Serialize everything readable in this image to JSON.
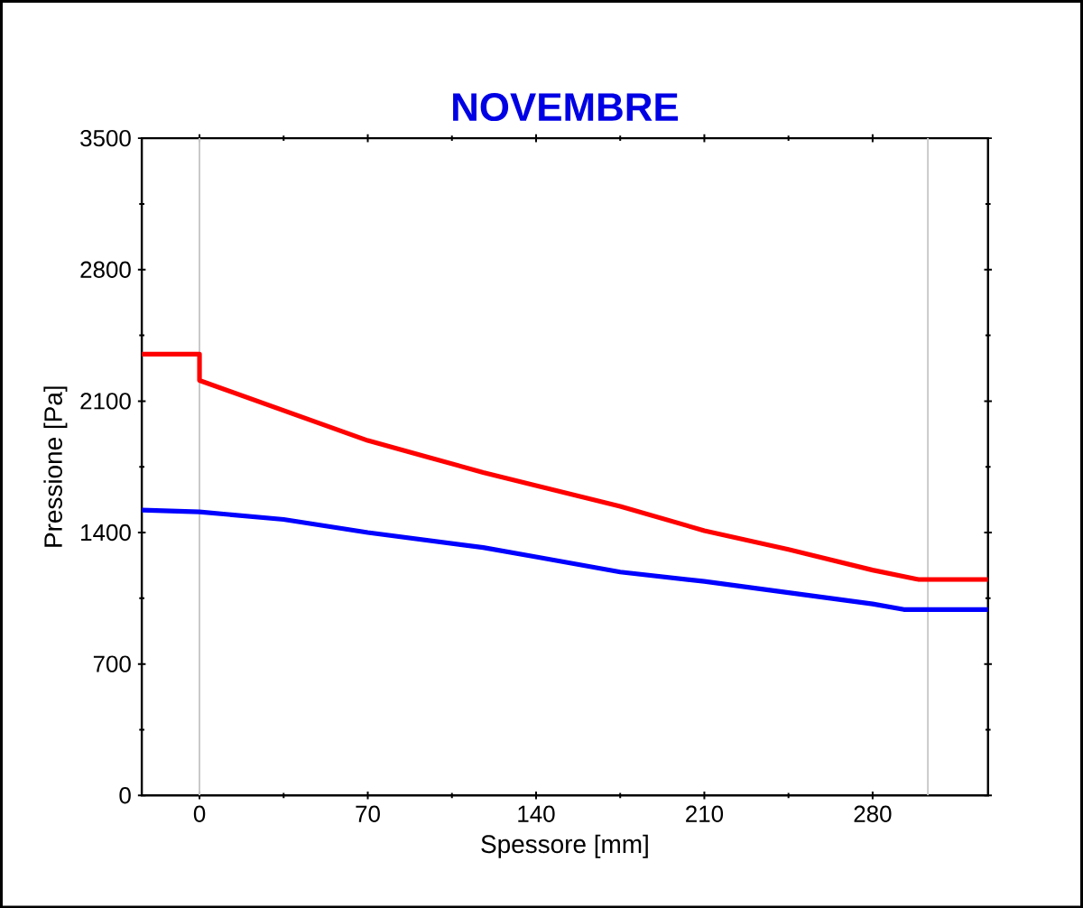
{
  "chart_data": {
    "type": "line",
    "title": "NOVEMBRE",
    "xlabel": "Spessore [mm]",
    "ylabel": "Pressione [Pa]",
    "xlim": [
      -24,
      328
    ],
    "ylim": [
      0,
      3500
    ],
    "xticks": [
      0,
      70,
      140,
      210,
      280
    ],
    "yticks": [
      0,
      700,
      1400,
      2100,
      2800,
      3500
    ],
    "ref_lines": [
      {
        "axis": "x",
        "value": 0,
        "color": "#c8c8c8"
      },
      {
        "axis": "x",
        "value": 303,
        "color": "#c8c8c8"
      }
    ],
    "grid": false,
    "marker": "none",
    "line_style": "solid",
    "series": [
      {
        "color": "#ff0000",
        "x": [
          -24,
          0,
          0,
          35,
          70,
          118,
          140,
          175,
          210,
          245,
          280,
          299,
          328
        ],
        "values": [
          2350,
          2350,
          2210,
          2050,
          1890,
          1720,
          1650,
          1540,
          1410,
          1310,
          1200,
          1150,
          1150
        ]
      },
      {
        "color": "#0000ff",
        "x": [
          -24,
          0,
          35,
          70,
          118,
          140,
          175,
          210,
          245,
          280,
          293,
          328
        ],
        "values": [
          1520,
          1510,
          1470,
          1400,
          1320,
          1270,
          1190,
          1140,
          1080,
          1020,
          990,
          990
        ]
      }
    ]
  }
}
